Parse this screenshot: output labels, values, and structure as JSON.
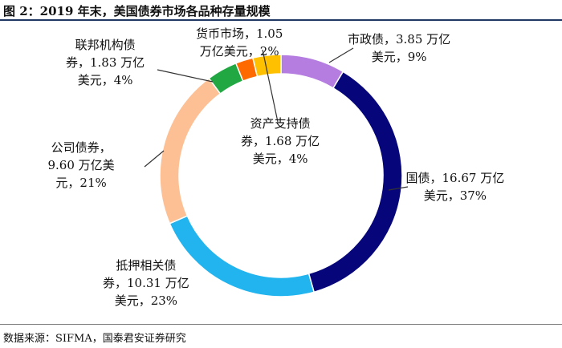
{
  "figure": {
    "title": "图 2：2019 年末，美国债券市场各品种存量规模",
    "source": "数据来源：SIFMA，国泰君安证券研究"
  },
  "chart_data": {
    "type": "pie",
    "subtype": "donut",
    "unit": "万亿美元",
    "categories": [
      "市政债",
      "国债",
      "抵押相关债券",
      "公司债券",
      "联邦机构债券",
      "货币市场",
      "资产支持债券"
    ],
    "values": [
      3.85,
      16.67,
      10.31,
      9.6,
      1.83,
      1.05,
      1.68
    ],
    "percentages": [
      9,
      37,
      23,
      21,
      4,
      2,
      4
    ],
    "colors": [
      "#b57de0",
      "#06067a",
      "#21b4ee",
      "#fdc094",
      "#21a843",
      "#ff6a00",
      "#ffc000"
    ],
    "labels": [
      {
        "lines": [
          "市政债，3.85 万亿",
          "美元，9%"
        ]
      },
      {
        "lines": [
          "国债，16.67 万亿",
          "美元，37%"
        ]
      },
      {
        "lines": [
          "抵押相关债",
          "券，10.31 万亿",
          "美元，23%"
        ]
      },
      {
        "lines": [
          "公司债券，",
          "9.60 万亿美",
          "元，21%"
        ]
      },
      {
        "lines": [
          "联邦机构债",
          "券，1.83 万亿",
          "美元，4%"
        ]
      },
      {
        "lines": [
          "货币市场，1.05",
          "万亿美元，2%"
        ]
      },
      {
        "lines": [
          "资产支持债",
          "券，1.68 万亿",
          "美元，4%"
        ]
      }
    ]
  }
}
